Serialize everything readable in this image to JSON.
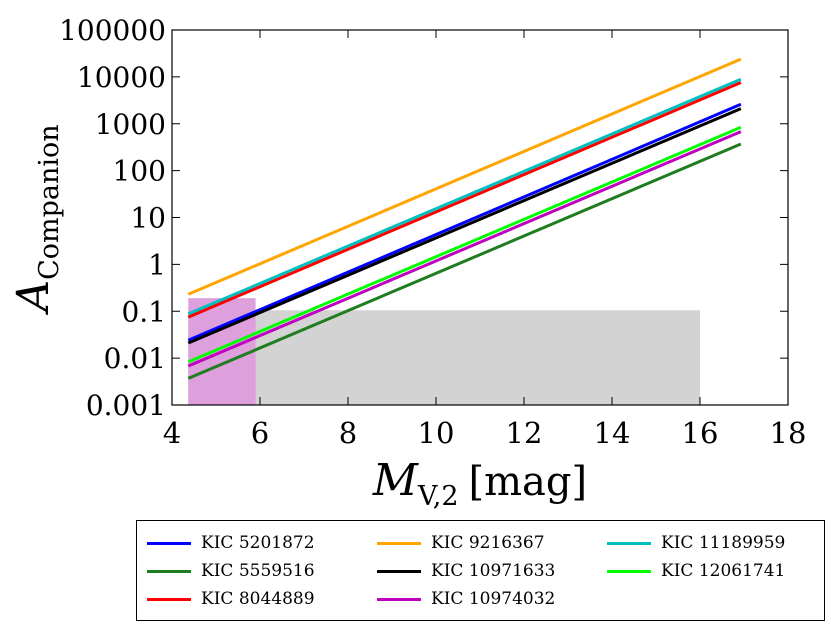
{
  "chart_data": {
    "type": "line",
    "ylabel_main": "A",
    "ylabel_sub": "Companion",
    "xlabel_main": "M",
    "xlabel_sub": "V,2",
    "xlabel_unit": "[mag]",
    "xlim": [
      4,
      18
    ],
    "ylim": [
      0.001,
      100000
    ],
    "yscale": "log",
    "grid": false,
    "legend_position": "bottom (below plot)",
    "x_ticks": [
      "4",
      "6",
      "8",
      "10",
      "12",
      "14",
      "16",
      "18"
    ],
    "y_ticks": [
      "0.001",
      "0.01",
      "0.1",
      "1",
      "10",
      "100",
      "1000",
      "10000",
      "100000"
    ],
    "series": [
      {
        "name": "KIC 5201872",
        "color": "#0000ff",
        "x": [
          4.37,
          16.93
        ],
        "y": [
          0.024,
          2600
        ]
      },
      {
        "name": "KIC 5559516",
        "color": "#1e7d1e",
        "x": [
          4.37,
          16.93
        ],
        "y": [
          0.0037,
          370
        ]
      },
      {
        "name": "KIC 8044889",
        "color": "#ff0000",
        "x": [
          4.37,
          16.93
        ],
        "y": [
          0.075,
          7600
        ]
      },
      {
        "name": "KIC 9216367",
        "color": "#ffa500",
        "x": [
          4.37,
          16.93
        ],
        "y": [
          0.23,
          24000
        ]
      },
      {
        "name": "KIC 10971633",
        "color": "#000000",
        "x": [
          4.37,
          16.93
        ],
        "y": [
          0.021,
          2100
        ]
      },
      {
        "name": "KIC 10974032",
        "color": "#bf00bf",
        "x": [
          4.37,
          16.93
        ],
        "y": [
          0.0068,
          680
        ]
      },
      {
        "name": "KIC 11189959",
        "color": "#00bfbf",
        "x": [
          4.37,
          16.93
        ],
        "y": [
          0.088,
          8900
        ]
      },
      {
        "name": "KIC 12061741",
        "color": "#00ff00",
        "x": [
          4.37,
          16.93
        ],
        "y": [
          0.0083,
          840
        ]
      }
    ],
    "regions": [
      {
        "x": [
          4.37,
          16.0
        ],
        "y": [
          0.001,
          0.105
        ],
        "color": "#d3d3d3"
      },
      {
        "x": [
          4.37,
          5.9
        ],
        "y": [
          0.001,
          0.19
        ],
        "color": "#dda0dd"
      }
    ]
  }
}
